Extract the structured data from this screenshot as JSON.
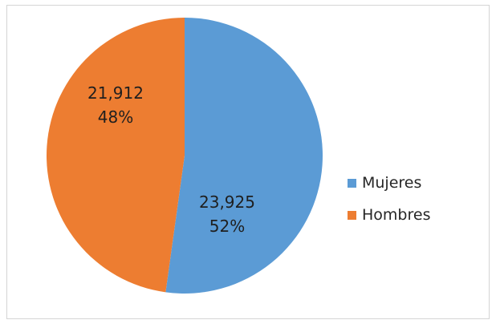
{
  "chart_data": {
    "type": "pie",
    "title": "",
    "legend_position": "right",
    "start_angle_deg": 0,
    "direction": "clockwise",
    "series": [
      {
        "name": "",
        "categories": [
          "Mujeres",
          "Hombres"
        ],
        "values": [
          23925,
          21912
        ],
        "value_labels": [
          "23,925",
          "21,912"
        ],
        "percent_labels": [
          "52%",
          "48%"
        ],
        "colors": [
          "#5b9bd5",
          "#ed7d31"
        ]
      }
    ]
  },
  "legend": {
    "items": [
      {
        "label": "Mujeres",
        "color": "#5b9bd5"
      },
      {
        "label": "Hombres",
        "color": "#ed7d31"
      }
    ]
  }
}
